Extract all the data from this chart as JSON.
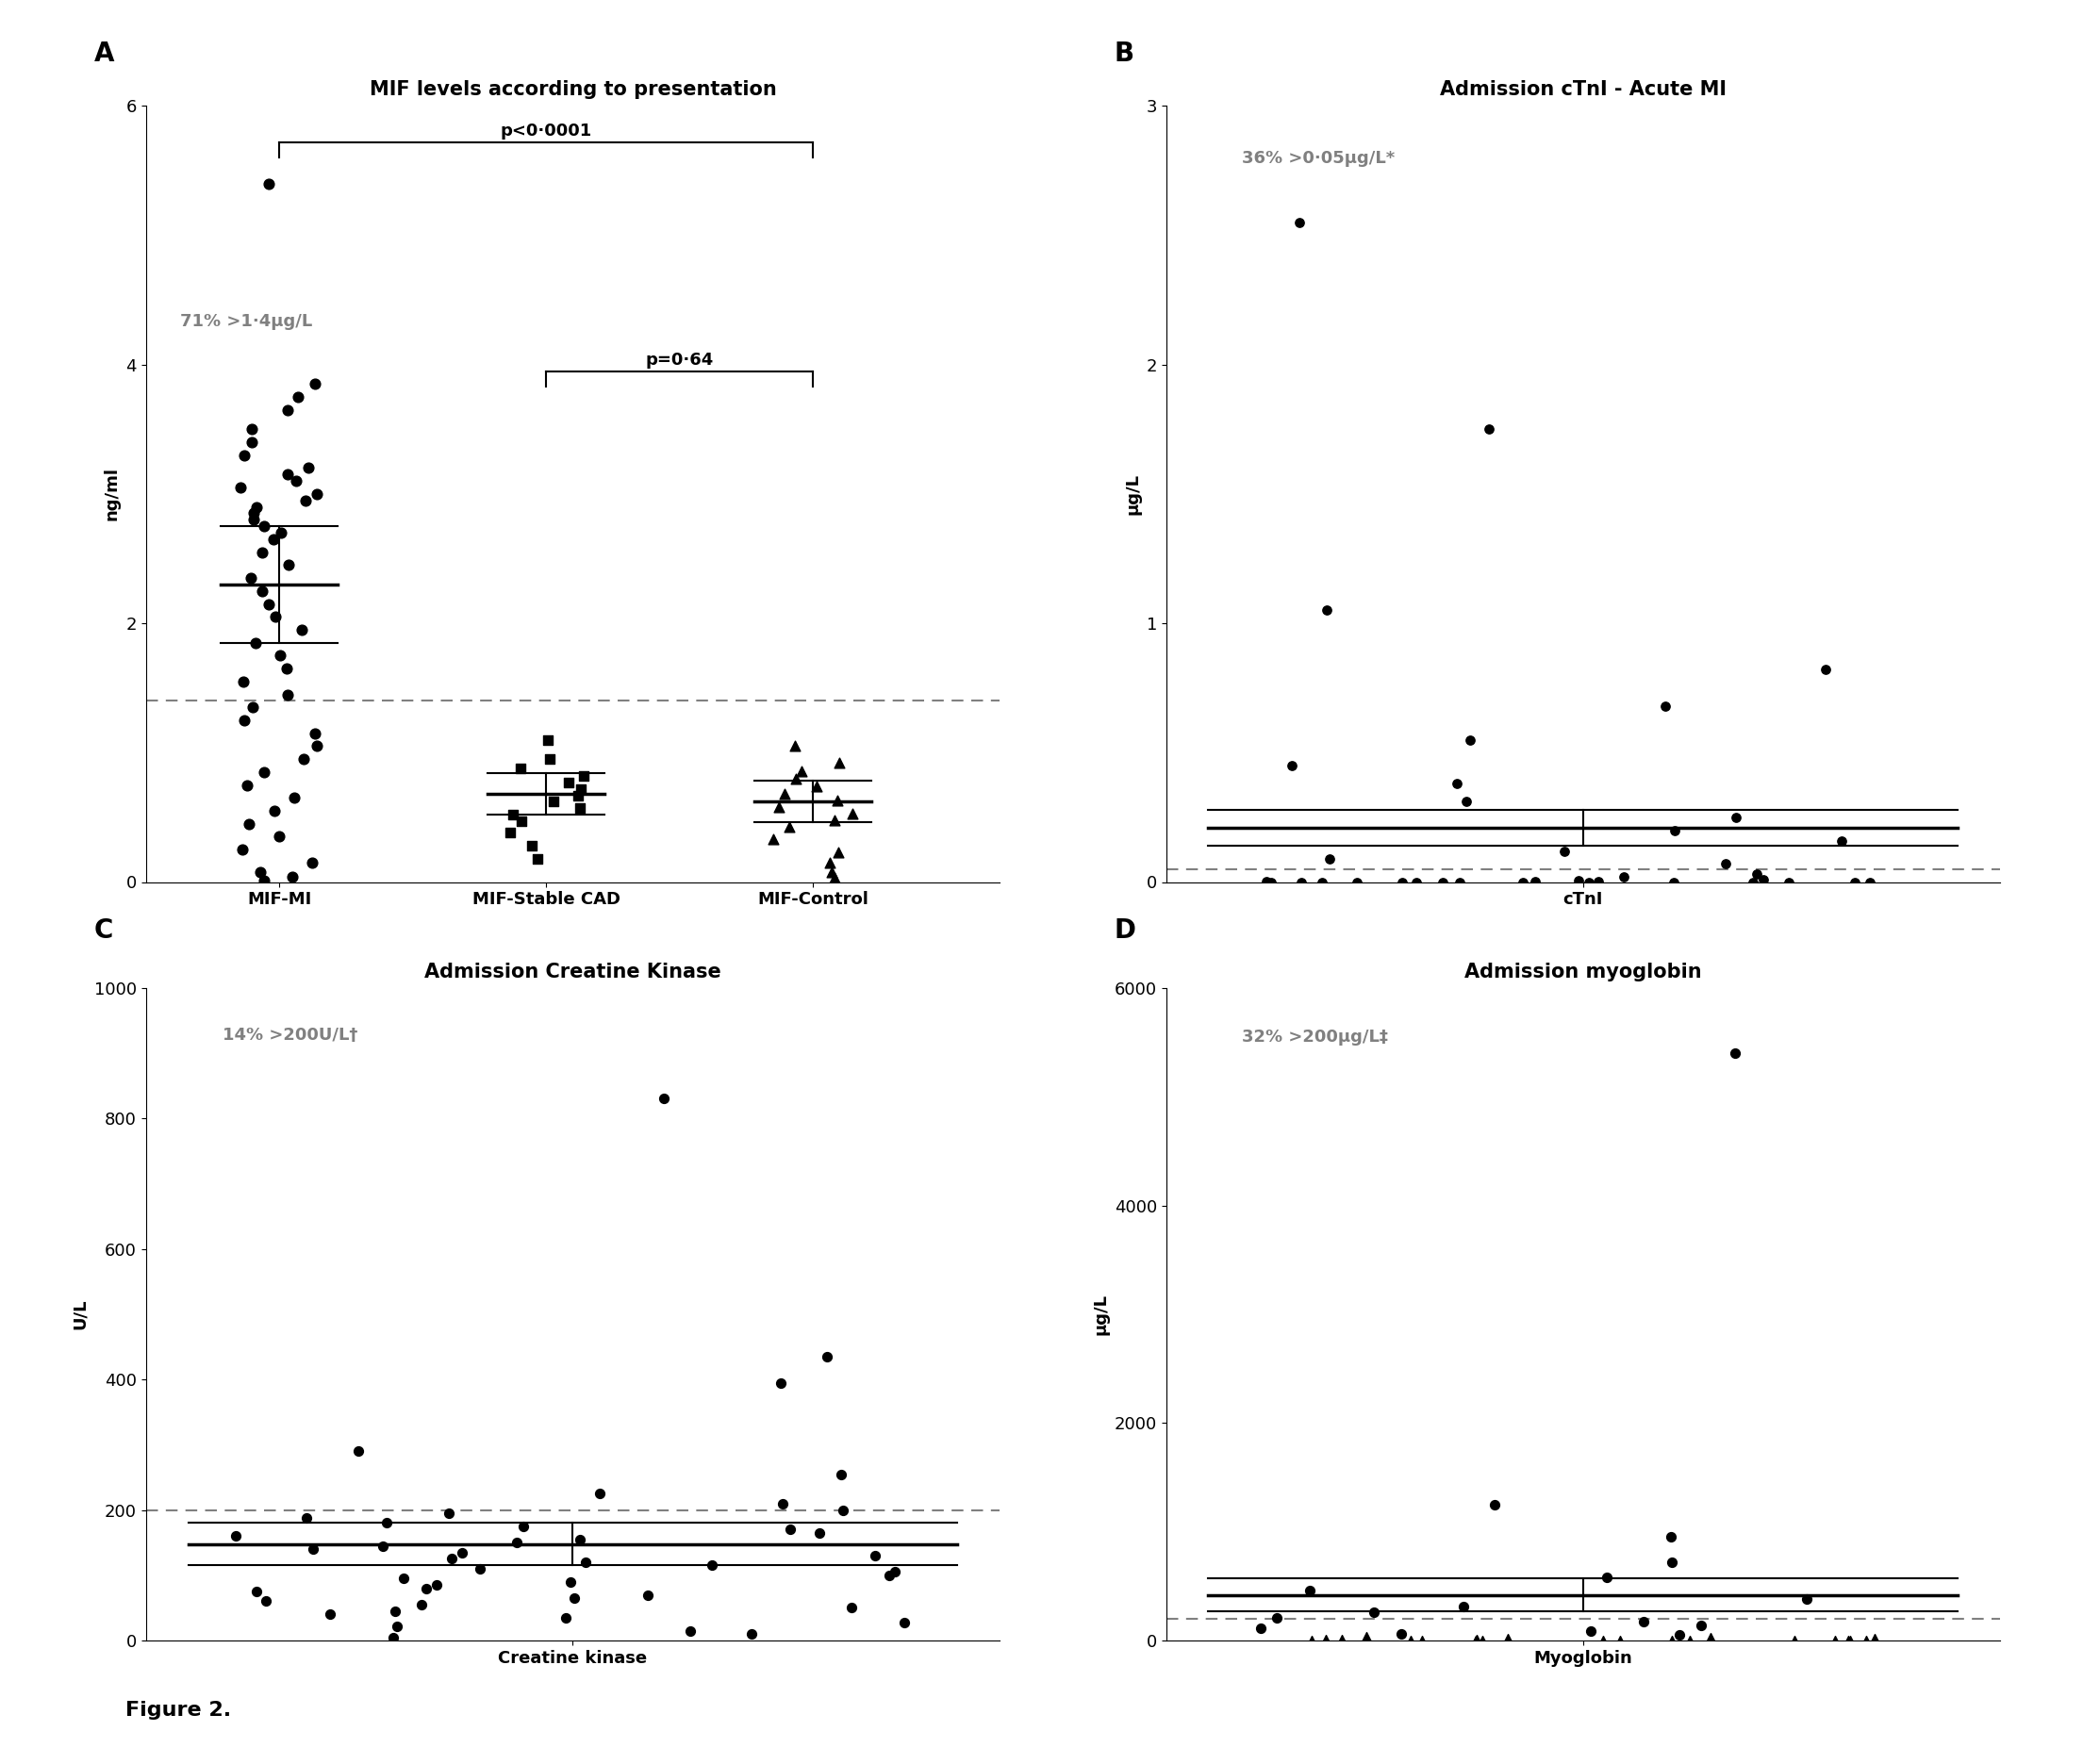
{
  "panel_A": {
    "title": "MIF levels according to presentation",
    "ylabel": "ng/ml",
    "ylim": [
      0,
      6
    ],
    "yticks": [
      0,
      2,
      4,
      6
    ],
    "annotation_text": "71% >1·4μg/L",
    "p1_text": "p<0·0001",
    "p2_text": "p=0·64",
    "dashed_line_y": 1.4,
    "groups": [
      "MIF-MI",
      "MIF-Stable CAD",
      "MIF-Control"
    ],
    "mi_mean": 2.3,
    "mi_sem_low": 1.85,
    "mi_sem_high": 2.75,
    "cad_mean": 0.68,
    "cad_sem_low": 0.52,
    "cad_sem_high": 0.84,
    "ctrl_mean": 0.62,
    "ctrl_sem_low": 0.46,
    "ctrl_sem_high": 0.78,
    "mi_dots": [
      5.4,
      3.85,
      3.75,
      3.65,
      3.5,
      3.4,
      3.3,
      3.2,
      3.15,
      3.1,
      3.05,
      3.0,
      2.95,
      2.9,
      2.85,
      2.8,
      2.75,
      2.7,
      2.65,
      2.55,
      2.45,
      2.35,
      2.25,
      2.15,
      2.05,
      1.95,
      1.85,
      1.75,
      1.65,
      1.55,
      1.45,
      1.35,
      1.25,
      1.15,
      1.05,
      0.95,
      0.85,
      0.75,
      0.65,
      0.55,
      0.45,
      0.35,
      0.25,
      0.15,
      0.08,
      0.04,
      0.01
    ],
    "cad_dots": [
      1.1,
      0.95,
      0.88,
      0.82,
      0.77,
      0.72,
      0.67,
      0.62,
      0.57,
      0.52,
      0.47,
      0.38,
      0.28,
      0.18
    ],
    "ctrl_dots": [
      1.05,
      0.92,
      0.86,
      0.8,
      0.74,
      0.68,
      0.63,
      0.58,
      0.53,
      0.48,
      0.43,
      0.33,
      0.23,
      0.15,
      0.08,
      0.03
    ]
  },
  "panel_B": {
    "title": "Admission cTnI - Acute MI",
    "ylabel": "μg/L",
    "ylim": [
      0,
      3
    ],
    "yticks": [
      0,
      1,
      2,
      3
    ],
    "annotation_text": "36% >0·05μg/L*",
    "dashed_line_y": 0.05,
    "mean_line": 0.21,
    "sem_low": 0.14,
    "sem_high": 0.28,
    "xlabel": "cTnI",
    "dots_circle": [
      2.55,
      1.75,
      1.05,
      0.82,
      0.68,
      0.55,
      0.45,
      0.38,
      0.31,
      0.25,
      0.2,
      0.16,
      0.12,
      0.09,
      0.07
    ],
    "dots_near_zero": [
      0.03,
      0.02,
      0.01,
      0.005,
      0.003,
      0.002,
      0.001,
      0.0,
      0.0,
      0.0,
      0.0,
      0.0,
      0.0,
      0.0,
      0.0,
      0.0,
      0.0,
      0.0,
      0.0,
      0.0,
      0.0,
      0.0
    ]
  },
  "panel_C": {
    "title": "Admission Creatine Kinase",
    "ylabel": "U/L",
    "ylim": [
      0,
      1000
    ],
    "yticks": [
      0,
      200,
      400,
      600,
      800,
      1000
    ],
    "annotation_text": "14% >200U/L†",
    "dashed_line_y": 200,
    "mean_line": 148,
    "sem_low": 115,
    "sem_high": 181,
    "xlabel": "Creatine kinase",
    "dots_upper": [
      830,
      435,
      395,
      290,
      255,
      225,
      210,
      200,
      195,
      188,
      180,
      175,
      170,
      165,
      160,
      155,
      150,
      145,
      140,
      135,
      130,
      125,
      120,
      115,
      110,
      105,
      100,
      95,
      90,
      85,
      80,
      75,
      70,
      65,
      60,
      55,
      50,
      45,
      40,
      35,
      28,
      22,
      15,
      10,
      5
    ]
  },
  "panel_D": {
    "title": "Admission myoglobin",
    "ylabel": "μg/L",
    "ylim": [
      0,
      6000
    ],
    "yticks": [
      0,
      2000,
      4000,
      6000
    ],
    "annotation_text": "32% >200μg/L‡",
    "dashed_line_y": 200,
    "mean_line": 420,
    "sem_low": 270,
    "sem_high": 570,
    "xlabel": "Myoglobin",
    "dots": [
      5400,
      1250,
      950,
      720,
      580,
      460,
      380,
      310,
      260,
      210,
      170,
      140,
      110,
      85,
      65,
      50,
      38,
      28,
      20,
      14,
      10,
      7,
      5,
      3,
      2,
      1,
      0,
      0,
      0,
      0,
      0,
      0,
      0,
      0,
      0,
      0,
      0
    ]
  },
  "figure_label": "Figure 2.",
  "label_A": "A",
  "label_B": "B",
  "label_C": "C",
  "label_D": "D"
}
